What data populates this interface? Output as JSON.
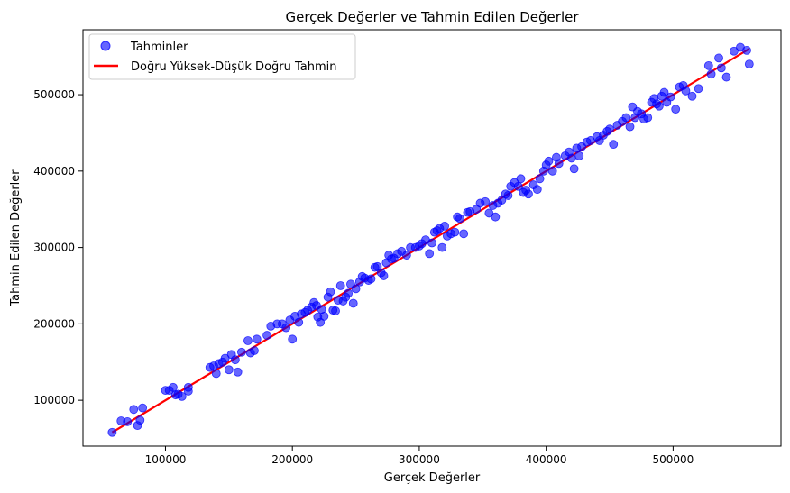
{
  "chart_data": {
    "type": "scatter",
    "title": "Gerçek Değerler ve Tahmin Edilen Değerler",
    "xlabel": "Gerçek Değerler",
    "ylabel": "Tahmin Edilen Değerler",
    "xlim": [
      35000,
      585000
    ],
    "ylim": [
      40000,
      585000
    ],
    "xticks": [
      100000,
      200000,
      300000,
      400000,
      500000
    ],
    "yticks": [
      100000,
      200000,
      300000,
      400000,
      500000
    ],
    "grid": false,
    "legend_position": "top-left",
    "series": [
      {
        "name": "Tahminler",
        "kind": "scatter",
        "color": "#0000ff",
        "opacity": 0.6,
        "points": [
          [
            58000,
            58000
          ],
          [
            65000,
            73000
          ],
          [
            70000,
            72000
          ],
          [
            75000,
            88000
          ],
          [
            78000,
            67000
          ],
          [
            80000,
            74000
          ],
          [
            82000,
            90000
          ],
          [
            100000,
            113000
          ],
          [
            103000,
            113000
          ],
          [
            106000,
            117000
          ],
          [
            108000,
            107000
          ],
          [
            110000,
            108000
          ],
          [
            113000,
            105000
          ],
          [
            118000,
            117000
          ],
          [
            118000,
            112000
          ],
          [
            135000,
            143000
          ],
          [
            138000,
            145000
          ],
          [
            140000,
            135000
          ],
          [
            142000,
            148000
          ],
          [
            145000,
            150000
          ],
          [
            147000,
            155000
          ],
          [
            150000,
            140000
          ],
          [
            152000,
            160000
          ],
          [
            155000,
            153000
          ],
          [
            157000,
            137000
          ],
          [
            160000,
            163000
          ],
          [
            165000,
            178000
          ],
          [
            167000,
            162000
          ],
          [
            170000,
            165000
          ],
          [
            172000,
            180000
          ],
          [
            180000,
            185000
          ],
          [
            183000,
            197000
          ],
          [
            188000,
            200000
          ],
          [
            192000,
            200000
          ],
          [
            195000,
            195000
          ],
          [
            198000,
            205000
          ],
          [
            200000,
            180000
          ],
          [
            202000,
            210000
          ],
          [
            205000,
            202000
          ],
          [
            207000,
            213000
          ],
          [
            210000,
            215000
          ],
          [
            212000,
            218000
          ],
          [
            215000,
            222000
          ],
          [
            217000,
            228000
          ],
          [
            219000,
            224000
          ],
          [
            220000,
            209000
          ],
          [
            222000,
            202000
          ],
          [
            223000,
            219000
          ],
          [
            225000,
            210000
          ],
          [
            228000,
            235000
          ],
          [
            230000,
            242000
          ],
          [
            232000,
            218000
          ],
          [
            234000,
            217000
          ],
          [
            236000,
            231000
          ],
          [
            238000,
            250000
          ],
          [
            240000,
            230000
          ],
          [
            242000,
            235000
          ],
          [
            244000,
            240000
          ],
          [
            246000,
            252000
          ],
          [
            248000,
            227000
          ],
          [
            250000,
            246000
          ],
          [
            253000,
            255000
          ],
          [
            255000,
            262000
          ],
          [
            257000,
            260000
          ],
          [
            260000,
            257000
          ],
          [
            262000,
            259000
          ],
          [
            265000,
            274000
          ],
          [
            267000,
            275000
          ],
          [
            270000,
            267000
          ],
          [
            272000,
            263000
          ],
          [
            274000,
            280000
          ],
          [
            276000,
            290000
          ],
          [
            278000,
            285000
          ],
          [
            280000,
            286000
          ],
          [
            283000,
            292000
          ],
          [
            286000,
            295000
          ],
          [
            290000,
            290000
          ],
          [
            293000,
            300000
          ],
          [
            297000,
            300000
          ],
          [
            300000,
            302000
          ],
          [
            302000,
            305000
          ],
          [
            305000,
            310000
          ],
          [
            308000,
            292000
          ],
          [
            310000,
            306000
          ],
          [
            312000,
            320000
          ],
          [
            314000,
            322000
          ],
          [
            316000,
            325000
          ],
          [
            318000,
            300000
          ],
          [
            320000,
            328000
          ],
          [
            322000,
            315000
          ],
          [
            325000,
            318000
          ],
          [
            328000,
            320000
          ],
          [
            330000,
            340000
          ],
          [
            332000,
            338000
          ],
          [
            335000,
            318000
          ],
          [
            338000,
            346000
          ],
          [
            340000,
            347000
          ],
          [
            345000,
            350000
          ],
          [
            348000,
            358000
          ],
          [
            352000,
            360000
          ],
          [
            355000,
            345000
          ],
          [
            358000,
            355000
          ],
          [
            360000,
            340000
          ],
          [
            362000,
            358000
          ],
          [
            365000,
            362000
          ],
          [
            368000,
            370000
          ],
          [
            370000,
            368000
          ],
          [
            372000,
            380000
          ],
          [
            375000,
            385000
          ],
          [
            378000,
            380000
          ],
          [
            380000,
            390000
          ],
          [
            382000,
            372000
          ],
          [
            384000,
            375000
          ],
          [
            386000,
            370000
          ],
          [
            390000,
            382000
          ],
          [
            393000,
            376000
          ],
          [
            395000,
            390000
          ],
          [
            398000,
            400000
          ],
          [
            400000,
            408000
          ],
          [
            402000,
            413000
          ],
          [
            405000,
            400000
          ],
          [
            408000,
            418000
          ],
          [
            410000,
            410000
          ],
          [
            415000,
            420000
          ],
          [
            418000,
            425000
          ],
          [
            420000,
            417000
          ],
          [
            422000,
            403000
          ],
          [
            424000,
            430000
          ],
          [
            426000,
            420000
          ],
          [
            428000,
            432000
          ],
          [
            432000,
            438000
          ],
          [
            435000,
            440000
          ],
          [
            440000,
            445000
          ],
          [
            442000,
            440000
          ],
          [
            445000,
            447000
          ],
          [
            448000,
            452000
          ],
          [
            450000,
            455000
          ],
          [
            453000,
            435000
          ],
          [
            456000,
            460000
          ],
          [
            460000,
            465000
          ],
          [
            463000,
            470000
          ],
          [
            466000,
            458000
          ],
          [
            468000,
            484000
          ],
          [
            470000,
            470000
          ],
          [
            472000,
            478000
          ],
          [
            475000,
            475000
          ],
          [
            477000,
            468000
          ],
          [
            480000,
            470000
          ],
          [
            483000,
            490000
          ],
          [
            485000,
            495000
          ],
          [
            487000,
            488000
          ],
          [
            489000,
            485000
          ],
          [
            491000,
            498000
          ],
          [
            493000,
            503000
          ],
          [
            495000,
            490000
          ],
          [
            498000,
            497000
          ],
          [
            502000,
            481000
          ],
          [
            505000,
            510000
          ],
          [
            508000,
            512000
          ],
          [
            510000,
            505000
          ],
          [
            515000,
            498000
          ],
          [
            520000,
            508000
          ],
          [
            528000,
            538000
          ],
          [
            530000,
            527000
          ],
          [
            536000,
            548000
          ],
          [
            538000,
            535000
          ],
          [
            542000,
            523000
          ],
          [
            548000,
            557000
          ],
          [
            553000,
            562000
          ],
          [
            558000,
            558000
          ],
          [
            560000,
            540000
          ]
        ]
      },
      {
        "name": "Doğru Yüksek-Düşük Doğru Tahmin",
        "kind": "line",
        "color": "#ff0000",
        "points": [
          [
            58000,
            58000
          ],
          [
            560000,
            560000
          ]
        ]
      }
    ]
  }
}
